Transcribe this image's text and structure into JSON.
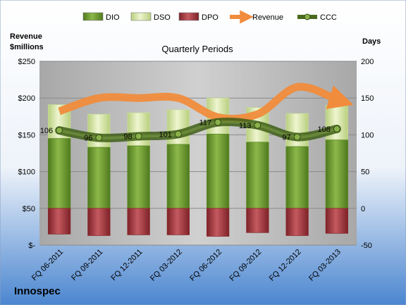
{
  "chart_data": {
    "type": "bar",
    "title": "Quarterly Periods",
    "company": "Innospec",
    "left_axis_title_line1": "Revenue",
    "left_axis_title_line2": "$millions",
    "right_axis_title": "Days",
    "categories": [
      "FQ 06-2011",
      "FQ 09-2011",
      "FQ 12-2011",
      "FQ 03-2012",
      "FQ 06-2012",
      "FQ 09-2012",
      "FQ 12-2012",
      "FQ 03-2013"
    ],
    "left_ticks": [
      "$-",
      "$50",
      "$100",
      "$150",
      "$200",
      "$250"
    ],
    "right_ticks": [
      "-50",
      "0",
      "50",
      "100",
      "150",
      "200"
    ],
    "left_ylim": [
      0,
      250
    ],
    "right_ylim": [
      -50,
      200
    ],
    "grid": true,
    "legend_position": "top",
    "series": [
      {
        "name": "DIO",
        "type": "bar",
        "axis": "right",
        "color": "#6e9a2e",
        "values": [
          95,
          83,
          85,
          87,
          101,
          90,
          84,
          93
        ]
      },
      {
        "name": "DSO",
        "type": "bar",
        "axis": "right",
        "color": "#d7e6a5",
        "values": [
          46,
          45,
          45,
          47,
          49,
          47,
          45,
          47
        ]
      },
      {
        "name": "DPO",
        "type": "bar",
        "axis": "right",
        "color": "#a0383e",
        "values": [
          -35,
          -37,
          -36,
          -36,
          -38,
          -33,
          -37,
          -34
        ]
      },
      {
        "name": "Revenue",
        "type": "line",
        "axis": "left",
        "color": "#f08c3c",
        "values": [
          182,
          200,
          200,
          200,
          174,
          178,
          215,
          198
        ]
      },
      {
        "name": "CCC",
        "type": "line",
        "axis": "right",
        "color": "#5a7a28",
        "values": [
          106,
          96,
          98,
          101,
          117,
          113,
          97,
          108
        ],
        "labels": [
          "106",
          "96",
          "98",
          "101",
          "117",
          "113",
          "97",
          "108"
        ]
      }
    ]
  }
}
